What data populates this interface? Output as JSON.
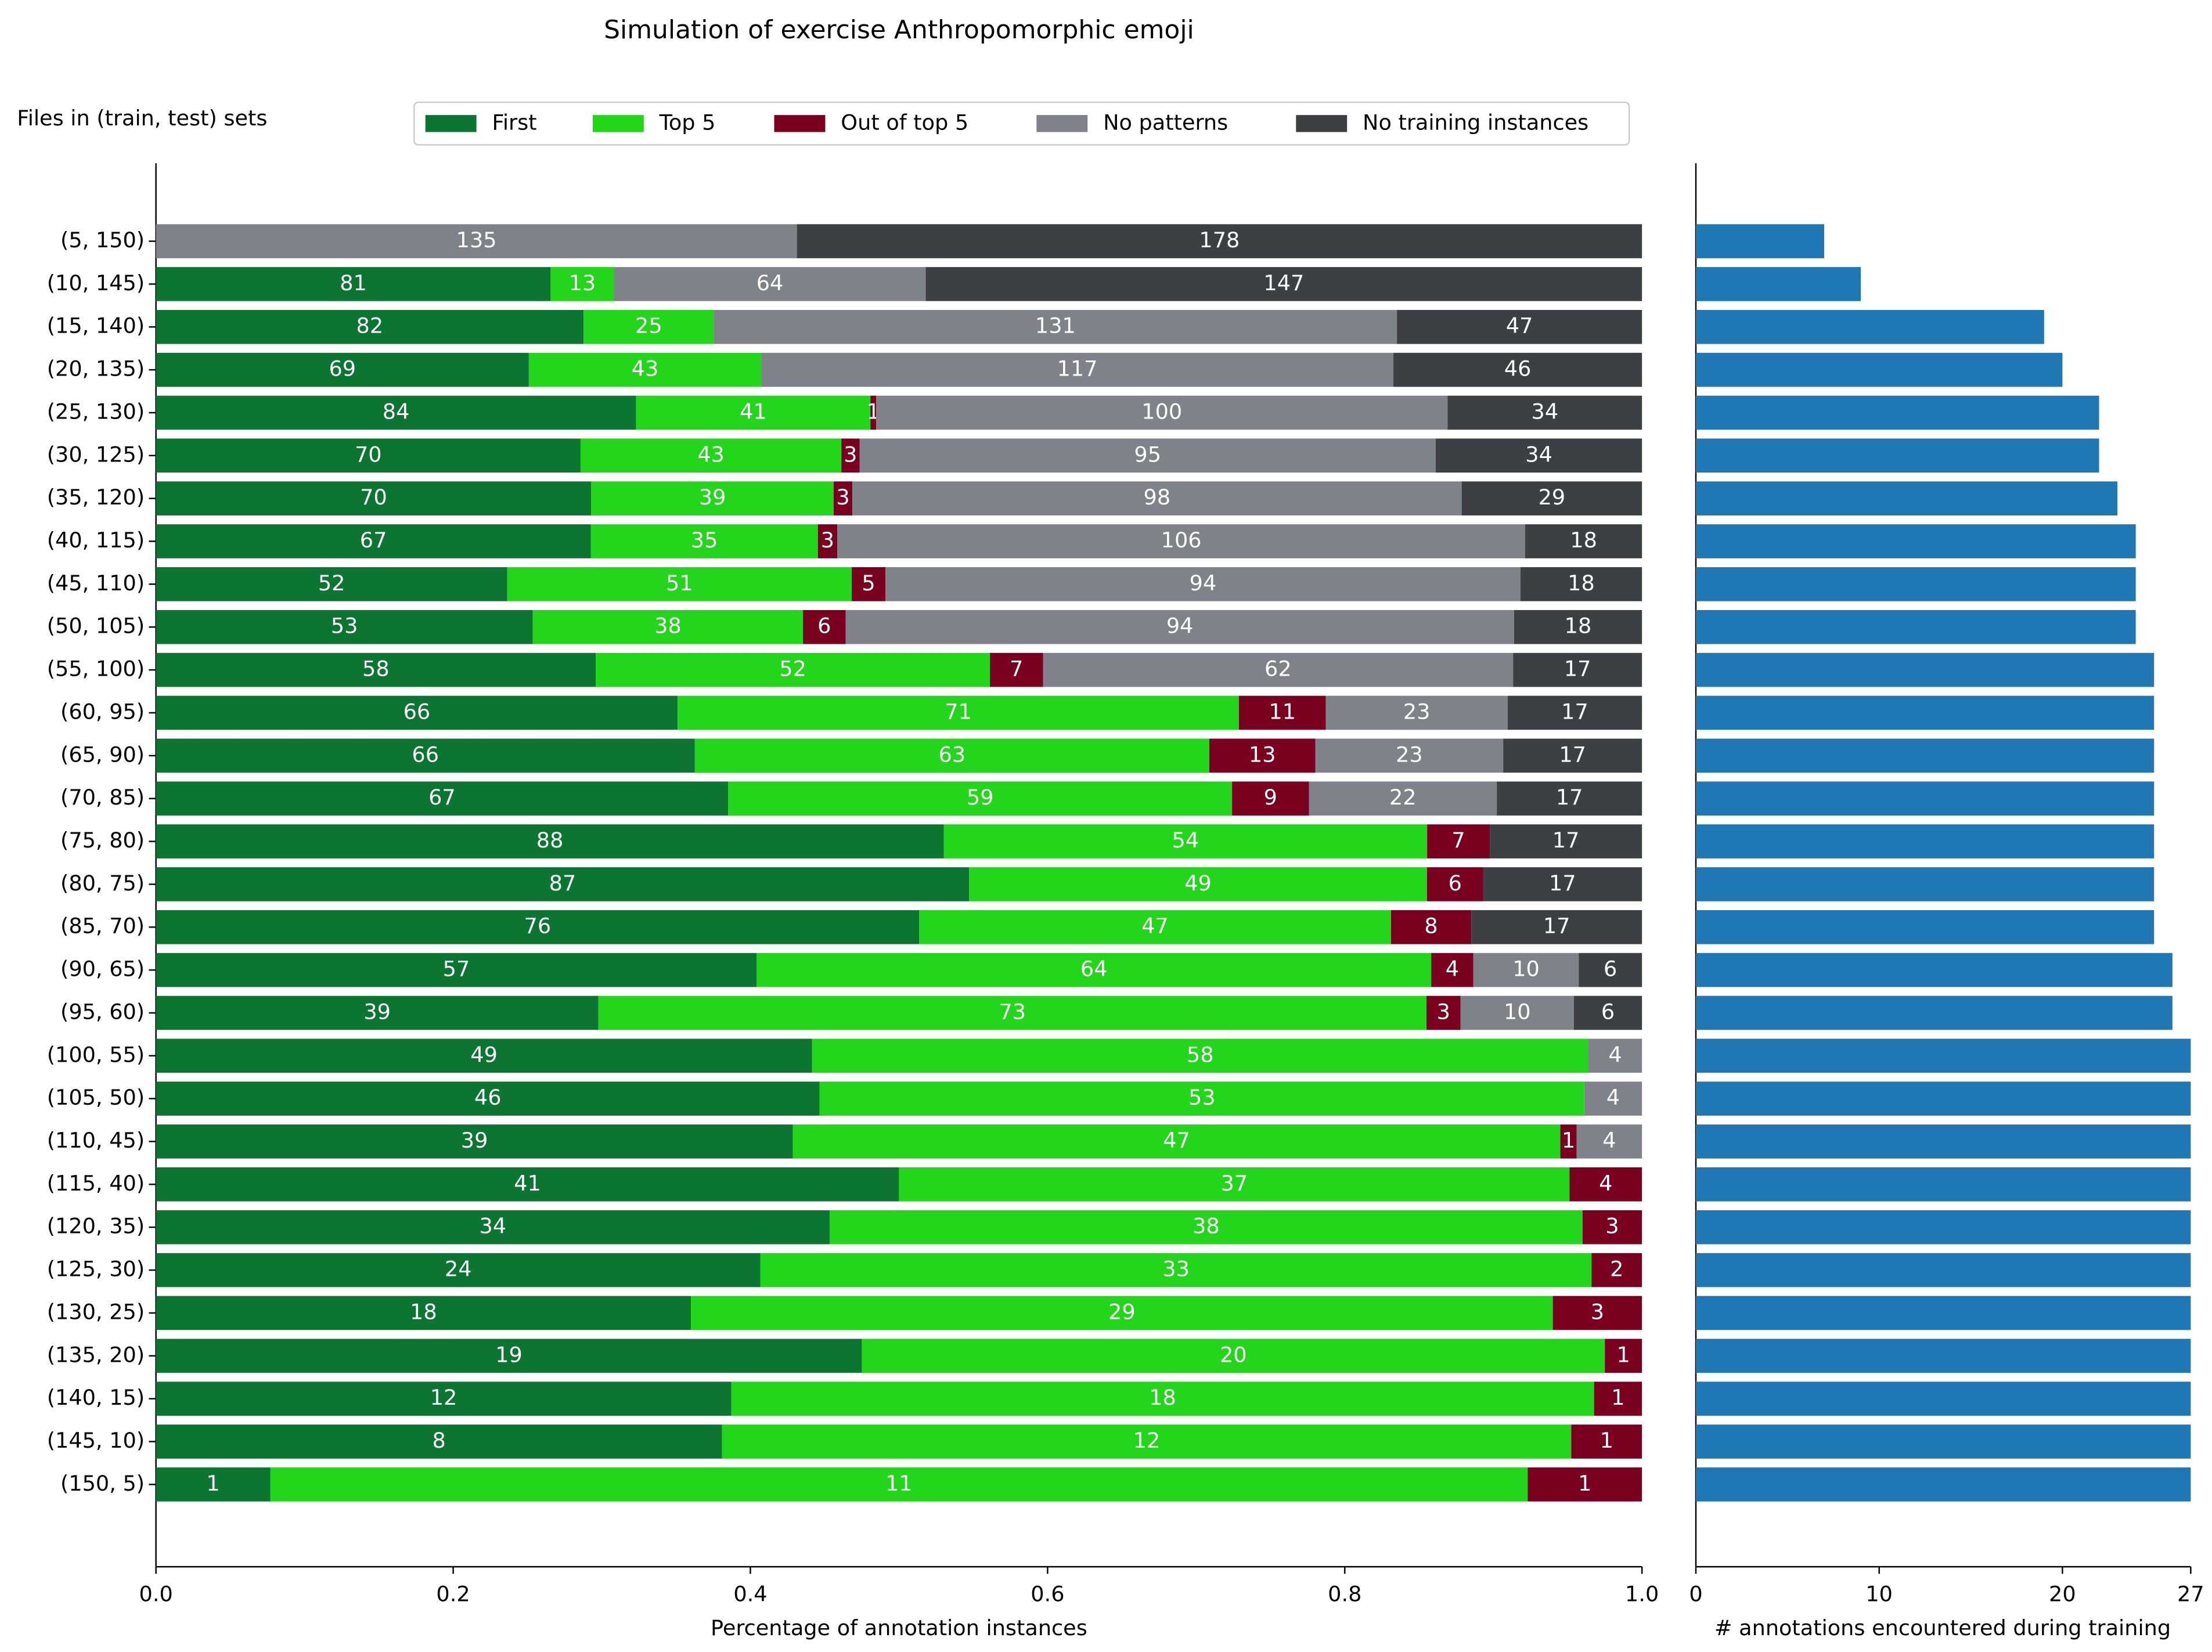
{
  "chart_data": [
    {
      "type": "bar",
      "orientation": "horizontal",
      "stacked": true,
      "normalized": true,
      "title": "Simulation of exercise Anthropomorphic emoji",
      "annotation": "Files in (train, test) sets",
      "xlabel": "Percentage of annotation instances",
      "categories": [
        "(5, 150)",
        "(10, 145)",
        "(15, 140)",
        "(20, 135)",
        "(25, 130)",
        "(30, 125)",
        "(35, 120)",
        "(40, 115)",
        "(45, 110)",
        "(50, 105)",
        "(55, 100)",
        "(60, 95)",
        "(65, 90)",
        "(70, 85)",
        "(75, 80)",
        "(80, 75)",
        "(85, 70)",
        "(90, 65)",
        "(95, 60)",
        "(100, 55)",
        "(105, 50)",
        "(110, 45)",
        "(115, 40)",
        "(120, 35)",
        "(125, 30)",
        "(130, 25)",
        "(135, 20)",
        "(140, 15)",
        "(145, 10)",
        "(150, 5)"
      ],
      "series": [
        {
          "name": "First",
          "color": "#0c7532",
          "values": [
            null,
            81,
            82,
            69,
            84,
            70,
            70,
            67,
            52,
            53,
            58,
            66,
            66,
            67,
            88,
            87,
            76,
            57,
            39,
            49,
            46,
            39,
            41,
            34,
            24,
            18,
            19,
            12,
            8,
            1
          ]
        },
        {
          "name": "Top 5",
          "color": "#24d61b",
          "values": [
            null,
            13,
            25,
            43,
            41,
            43,
            39,
            35,
            51,
            38,
            52,
            71,
            63,
            59,
            54,
            49,
            47,
            64,
            73,
            58,
            53,
            47,
            37,
            38,
            33,
            29,
            20,
            18,
            12,
            11
          ]
        },
        {
          "name": "Out of top 5",
          "color": "#7a0020",
          "values": [
            null,
            null,
            null,
            null,
            1,
            3,
            3,
            3,
            5,
            6,
            7,
            11,
            13,
            9,
            7,
            6,
            8,
            4,
            3,
            null,
            null,
            1,
            4,
            3,
            2,
            3,
            1,
            1,
            1,
            1
          ]
        },
        {
          "name": "No patterns",
          "color": "#7f8289",
          "values": [
            135,
            64,
            131,
            117,
            100,
            95,
            98,
            106,
            94,
            94,
            62,
            23,
            23,
            22,
            null,
            null,
            null,
            10,
            10,
            4,
            4,
            4,
            null,
            null,
            null,
            null,
            null,
            null,
            null,
            null
          ]
        },
        {
          "name": "No training instances",
          "color": "#3e3f42",
          "values": [
            178,
            147,
            47,
            46,
            34,
            34,
            29,
            18,
            18,
            18,
            17,
            17,
            17,
            17,
            17,
            17,
            17,
            6,
            6,
            null,
            null,
            null,
            null,
            null,
            null,
            null,
            null,
            null,
            null,
            null
          ]
        }
      ],
      "xlim": [
        0,
        1
      ],
      "xticks": [
        {
          "value": 0,
          "label": "0.0"
        },
        {
          "value": 0.2,
          "label": "0.2"
        },
        {
          "value": 0.4,
          "label": "0.4"
        },
        {
          "value": 0.6,
          "label": "0.6"
        },
        {
          "value": 0.8,
          "label": "0.8"
        },
        {
          "value": 1,
          "label": "1.0"
        }
      ],
      "legend": "top"
    },
    {
      "type": "bar",
      "orientation": "horizontal",
      "xlabel": "# annotations encountered during training",
      "color": "#1f77b4",
      "values": [
        7,
        9,
        19,
        20,
        22,
        22,
        23,
        24,
        24,
        24,
        25,
        25,
        25,
        25,
        25,
        25,
        25,
        26,
        26,
        27,
        27,
        27,
        27,
        27,
        27,
        27,
        27,
        27,
        27,
        27
      ],
      "xlim": [
        0,
        27
      ],
      "xticks": [
        0,
        10,
        20,
        27
      ]
    }
  ]
}
